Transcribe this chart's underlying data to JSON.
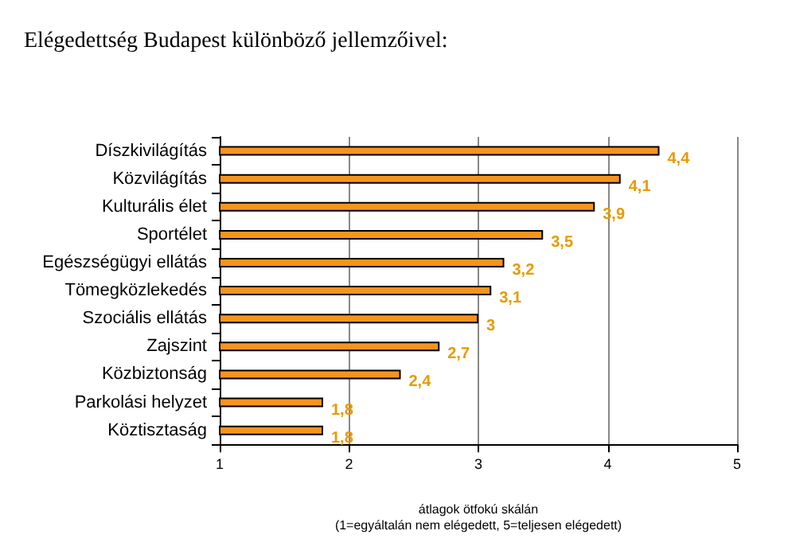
{
  "chart_data": {
    "type": "bar",
    "orientation": "horizontal",
    "title": "Elégedettség Budapest különböző jellemzőivel:",
    "categories": [
      "Díszkivilágítás",
      "Közvilágítás",
      "Kulturális élet",
      "Sportélet",
      "Egészségügyi ellátás",
      "Tömegközlekedés",
      "Szociális ellátás",
      "Zajszint",
      "Közbiztonság",
      "Parkolási helyzet",
      "Köztisztaság"
    ],
    "values": [
      4.4,
      4.1,
      3.9,
      3.5,
      3.2,
      3.1,
      3,
      2.7,
      2.4,
      1.8,
      1.8
    ],
    "value_labels": [
      "4,4",
      "4,1",
      "3,9",
      "3,5",
      "3,2",
      "3,1",
      "3",
      "2,7",
      "2,4",
      "1,8",
      "1,8"
    ],
    "color": "#f7941d",
    "xlim": [
      1,
      5
    ],
    "xticks": [
      1,
      2,
      3,
      4,
      5
    ],
    "grid": "x",
    "xlabel": "átlagok ötfokú skálán\n(1=egyáltalán nem elégedett, 5=teljesen elégedett)"
  }
}
